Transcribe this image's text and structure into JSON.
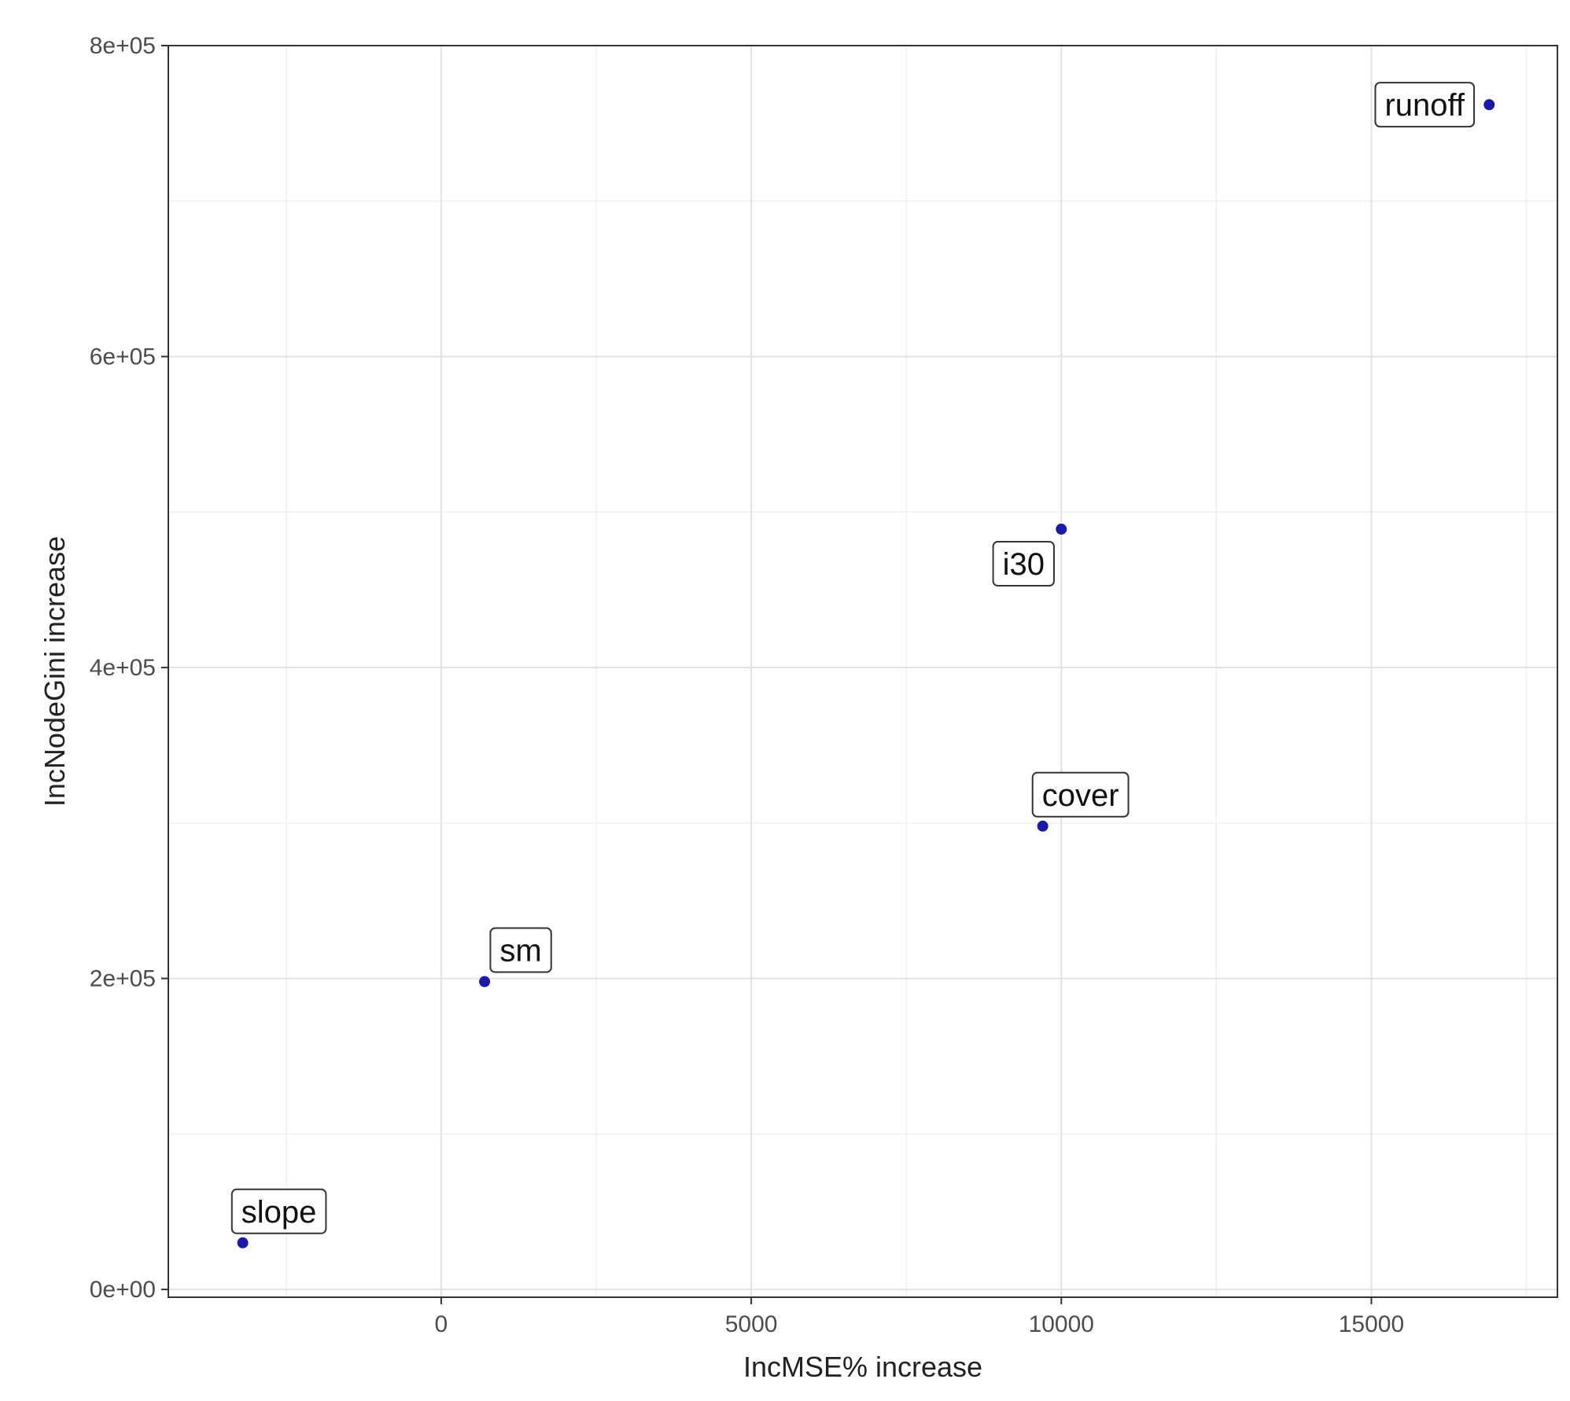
{
  "chart_data": {
    "type": "scatter",
    "title": "",
    "xlabel": "IncMSE% increase",
    "ylabel": "IncNodeGini increase",
    "xlim": [
      -4400,
      18000
    ],
    "ylim": [
      -5000,
      800000
    ],
    "x_ticks": [
      0,
      5000,
      10000,
      15000
    ],
    "x_tick_labels": [
      "0",
      "5000",
      "10000",
      "15000"
    ],
    "y_ticks": [
      0,
      200000,
      400000,
      600000,
      800000
    ],
    "y_tick_labels": [
      "0e+00",
      "2e+05",
      "4e+05",
      "6e+05",
      "8e+05"
    ],
    "grid": true,
    "point_color": "#1a1aa6",
    "points": [
      {
        "label": "slope",
        "x": -3200,
        "y": 30000
      },
      {
        "label": "sm",
        "x": 700,
        "y": 198000
      },
      {
        "label": "cover",
        "x": 9700,
        "y": 298000
      },
      {
        "label": "i30",
        "x": 10000,
        "y": 489000
      },
      {
        "label": "runoff",
        "x": 16900,
        "y": 762000
      }
    ]
  }
}
